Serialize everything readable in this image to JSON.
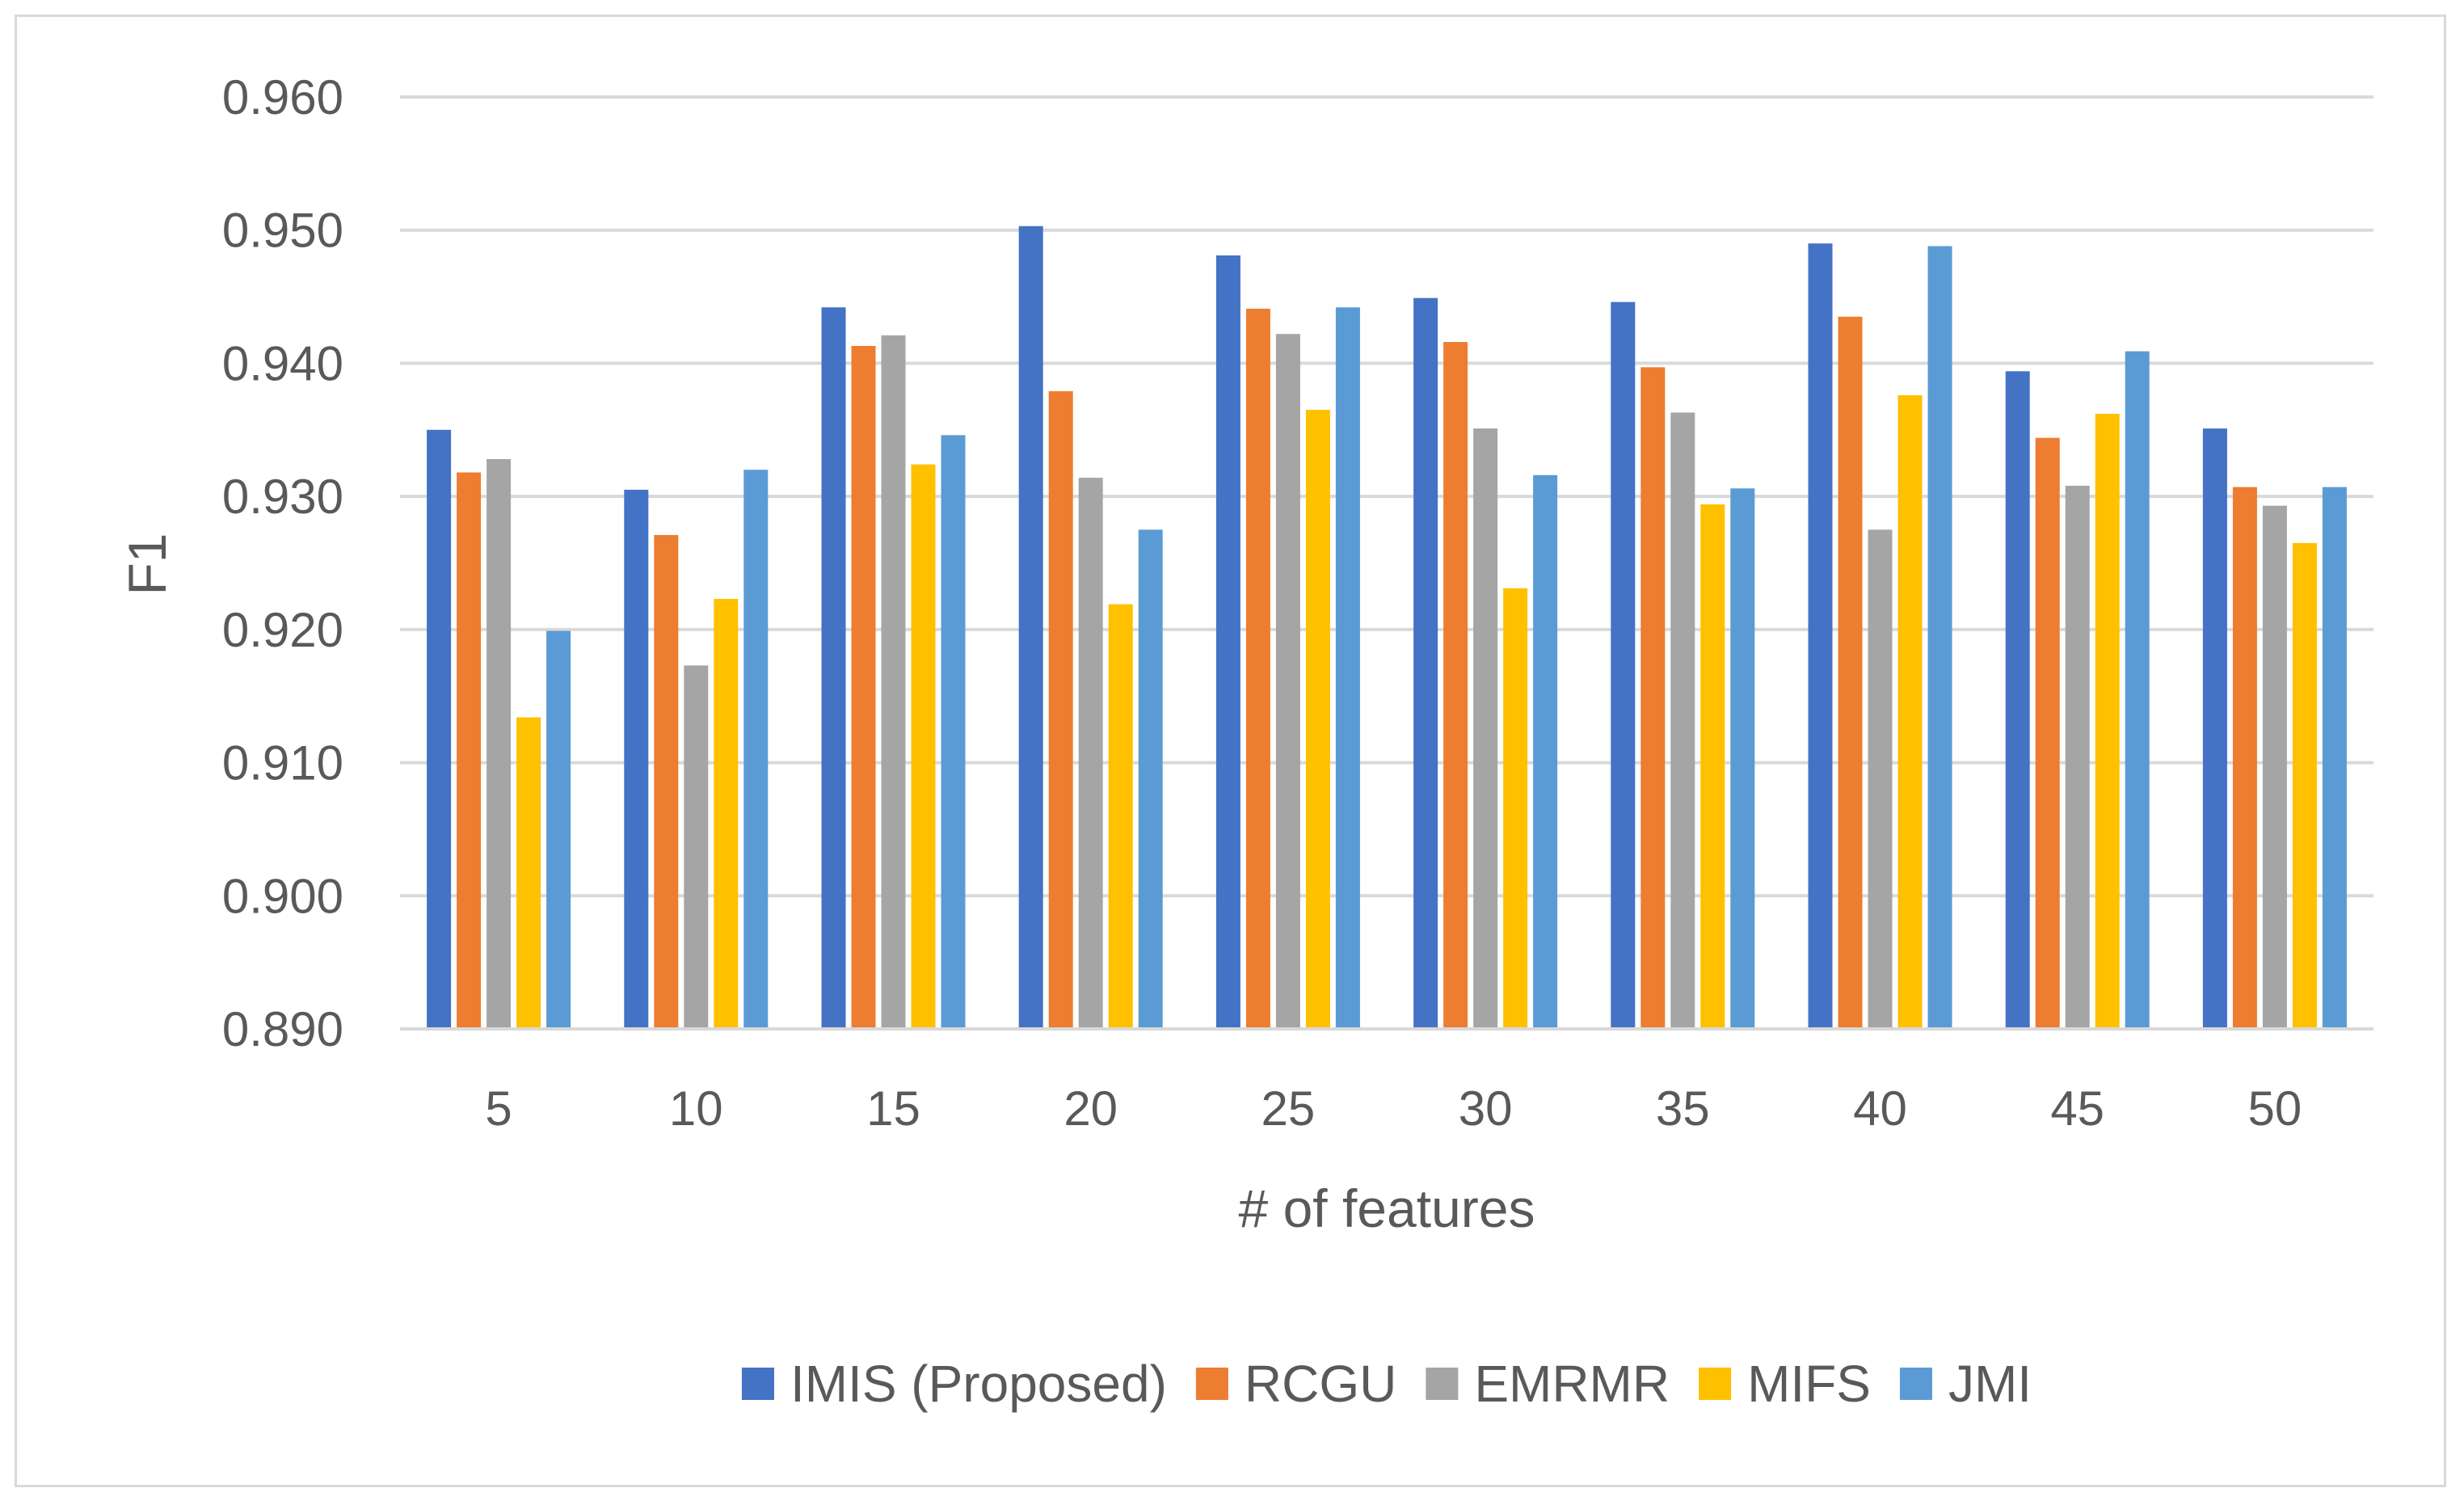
{
  "chart_data": {
    "type": "bar",
    "title": "",
    "xlabel": "# of features",
    "ylabel": "F1",
    "categories": [
      "5",
      "10",
      "15",
      "20",
      "25",
      "30",
      "35",
      "40",
      "45",
      "50"
    ],
    "ylim": [
      0.89,
      0.96
    ],
    "yticks": [
      "0.890",
      "0.900",
      "0.910",
      "0.920",
      "0.930",
      "0.940",
      "0.950",
      "0.960"
    ],
    "grid": true,
    "legend_position": "bottom",
    "series": [
      {
        "name": "IMIS (Proposed)",
        "color": "#4472C4",
        "values": [
          0.935,
          0.9305,
          0.9442,
          0.9503,
          0.9481,
          0.9449,
          0.9446,
          0.949,
          0.9394,
          0.9351
        ]
      },
      {
        "name": "RCGU",
        "color": "#ED7D31",
        "values": [
          0.9318,
          0.9271,
          0.9413,
          0.9379,
          0.9441,
          0.9416,
          0.9397,
          0.9435,
          0.9344,
          0.9307
        ]
      },
      {
        "name": "EMRMR",
        "color": "#A5A5A5",
        "values": [
          0.9328,
          0.9173,
          0.9421,
          0.9314,
          0.9422,
          0.9351,
          0.9363,
          0.9275,
          0.9308,
          0.9293
        ]
      },
      {
        "name": "MIFS",
        "color": "#FFC000",
        "values": [
          0.9134,
          0.9223,
          0.9324,
          0.9219,
          0.9365,
          0.9231,
          0.9294,
          0.9376,
          0.9362,
          0.9265
        ]
      },
      {
        "name": "JMI",
        "color": "#5B9BD5",
        "values": [
          0.9199,
          0.932,
          0.9346,
          0.9275,
          0.9442,
          0.9316,
          0.9306,
          0.9488,
          0.9409,
          0.9307
        ]
      }
    ]
  }
}
